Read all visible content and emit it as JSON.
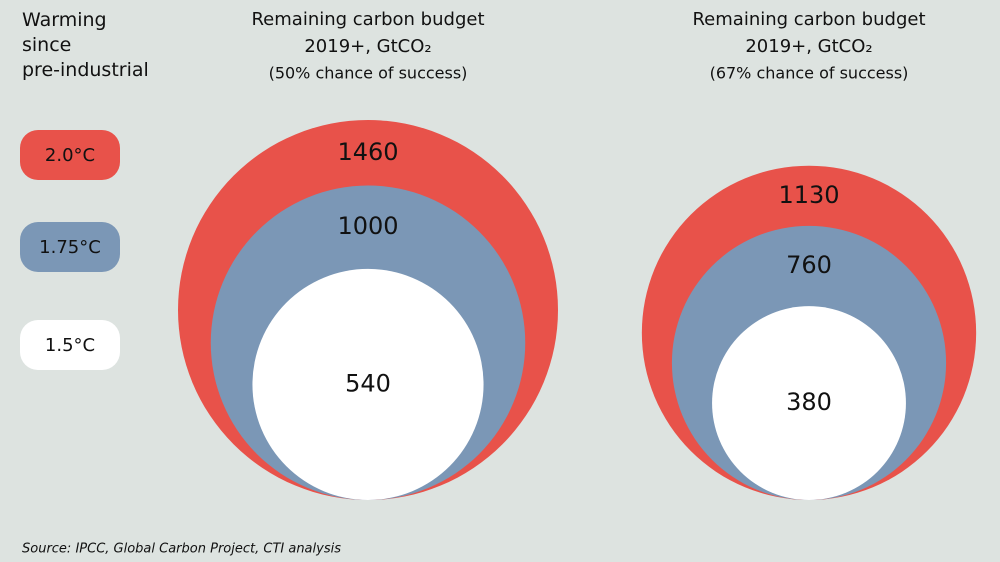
{
  "chart_data": {
    "type": "nested-circles",
    "legend_title": "Warming since pre-industrial",
    "series": [
      {
        "name": "2.0°C",
        "color": "#e8524a"
      },
      {
        "name": "1.75°C",
        "color": "#7b97b6"
      },
      {
        "name": "1.5°C",
        "color": "#ffffff"
      }
    ],
    "panels": [
      {
        "title": [
          "Remaining carbon budget",
          "2019+, GtCO₂"
        ],
        "subtitle": "(50% chance of success)",
        "values": [
          1460,
          1000,
          540
        ]
      },
      {
        "title": [
          "Remaining carbon budget",
          "2019+, GtCO₂"
        ],
        "subtitle": "(67% chance of success)",
        "values": [
          1130,
          760,
          380
        ]
      }
    ],
    "source": "Source: IPCC, Global Carbon Project, CTI analysis"
  }
}
